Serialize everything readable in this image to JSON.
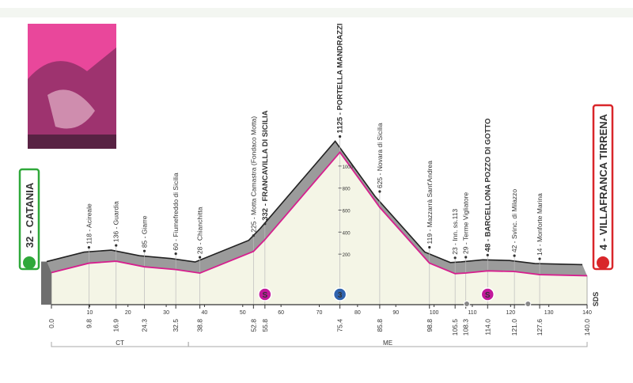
{
  "chart_data": {
    "type": "area",
    "start": "32 - CATANIA",
    "finish": "4 - VILLAFRANCA TIRRENA",
    "road_code": "SDS",
    "x": [
      0,
      9.8,
      16.9,
      24.3,
      32.5,
      38.8,
      52.8,
      55.8,
      75.4,
      85.8,
      98.8,
      105.5,
      108.3,
      114.0,
      121.0,
      127.6,
      140.0
    ],
    "values": [
      32,
      118,
      136,
      85,
      60,
      28,
      225,
      332,
      1125,
      625,
      119,
      23,
      29,
      48,
      42,
      14,
      4
    ],
    "point_labels": [
      null,
      "118 - Acireale",
      "136 - Guardia",
      "85 - Giarre",
      "60 - Fiumefreddo di Sicilia",
      "28 - Chianchitta",
      "225 - Motta Camastra (Fondaco Motta)",
      "332 - FRANCAVILLA DI SICILIA",
      "1125 - PORTELLA MANDRAZZI",
      "625 - Novara di Sicilia",
      "119 - Mazzarrà Sant'Andrea",
      "23 - Inn. ss.113",
      "29 - Terme Vigliatore",
      "48 - BARCELLONA POZZO DI GOTTO",
      "42 - Svinc. di Milazzo",
      "14 - Monforte Marina",
      null
    ],
    "line_color": "#d61f8e",
    "fill_color": "#f4f5e6",
    "shadow_color": "#9b9b9b",
    "xlim": [
      0,
      140
    ],
    "ylim": [
      0,
      1200
    ],
    "xticks": [
      {
        "value": 0,
        "label": "0.0"
      },
      9.8,
      16.9,
      24.3,
      32.5,
      38.8,
      52.8,
      55.8,
      75.4,
      85.8,
      98.8,
      105.5,
      108.3,
      {
        "value": 114,
        "label": "114.0"
      },
      {
        "value": 121,
        "label": "121.0"
      },
      127.6,
      {
        "value": 140,
        "label": "140.0"
      }
    ],
    "km_ticks": [
      10,
      20,
      30,
      40,
      50,
      60,
      70,
      80,
      90,
      100,
      110,
      120,
      130,
      140
    ],
    "yticks": [
      200,
      400,
      600,
      800,
      1000
    ],
    "markers": [
      {
        "x": 55.8,
        "label": "S",
        "color": "#c2189b"
      },
      {
        "x": 75.4,
        "label": "3",
        "color": "#2f62ad"
      },
      {
        "x": 114.0,
        "label": "S",
        "color": "#c2189b"
      }
    ],
    "provinces": [
      {
        "name": "CT",
        "from": 0,
        "to": 35.8
      },
      {
        "name": "ME",
        "from": 35.8,
        "to": 140
      }
    ]
  }
}
